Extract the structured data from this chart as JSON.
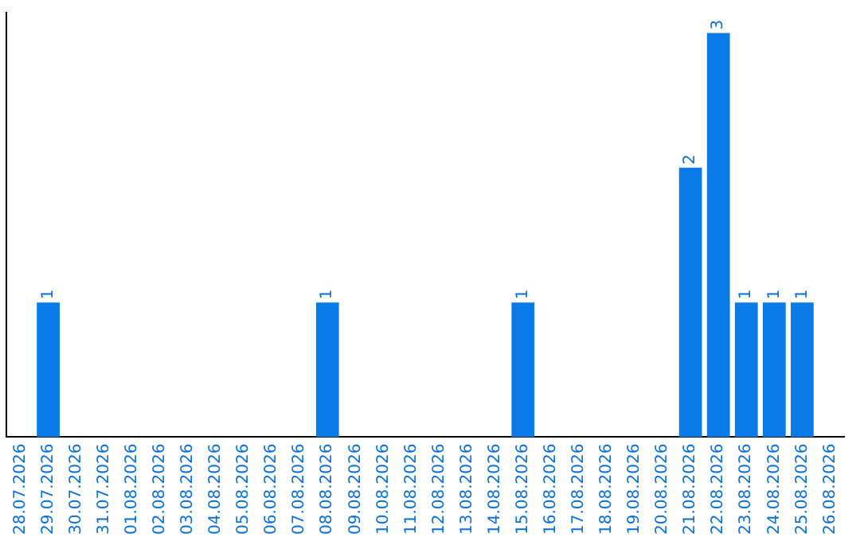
{
  "chart_data": {
    "type": "bar",
    "categories": [
      "28.07.2026",
      "29.07.2026",
      "30.07.2026",
      "31.07.2026",
      "01.08.2026",
      "02.08.2026",
      "03.08.2026",
      "04.08.2026",
      "05.08.2026",
      "06.08.2026",
      "07.08.2026",
      "08.08.2026",
      "09.08.2026",
      "10.08.2026",
      "11.08.2026",
      "12.08.2026",
      "13.08.2026",
      "14.08.2026",
      "15.08.2026",
      "16.08.2026",
      "17.08.2026",
      "18.08.2026",
      "19.08.2026",
      "20.08.2026",
      "21.08.2026",
      "22.08.2026",
      "23.08.2026",
      "24.08.2026",
      "25.08.2026",
      "26.08.2026"
    ],
    "values": [
      0,
      1,
      0,
      0,
      0,
      0,
      0,
      0,
      0,
      0,
      0,
      1,
      0,
      0,
      0,
      0,
      0,
      0,
      1,
      0,
      0,
      0,
      0,
      0,
      2,
      3,
      1,
      1,
      1,
      0
    ],
    "value_labels": [
      null,
      "1",
      null,
      null,
      null,
      null,
      null,
      null,
      null,
      null,
      null,
      "1",
      null,
      null,
      null,
      null,
      null,
      null,
      "1",
      null,
      null,
      null,
      null,
      null,
      "2",
      "3",
      "1",
      "1",
      "1",
      null
    ],
    "color": "#0a7be6",
    "ylim": [
      0,
      3.15
    ],
    "grid": false,
    "legend": false,
    "tick_labels": "x"
  }
}
